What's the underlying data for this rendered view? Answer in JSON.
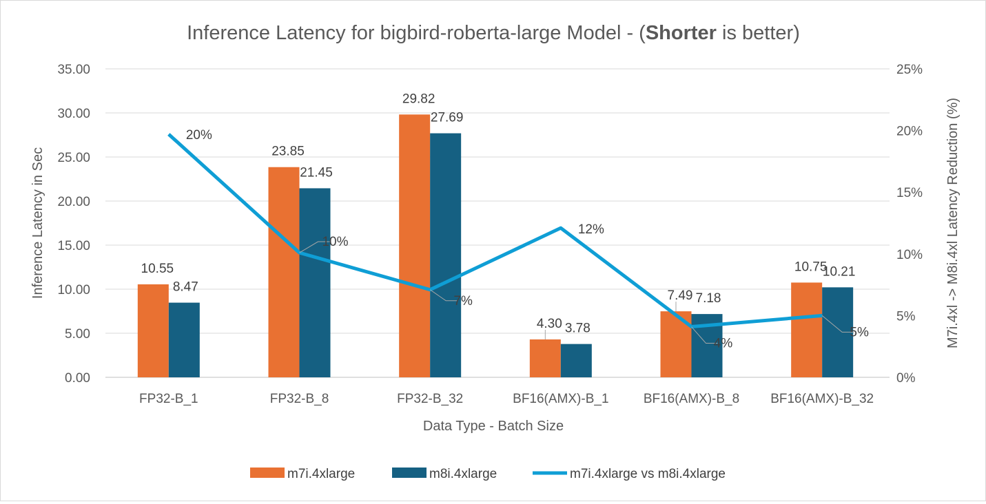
{
  "chart_data": {
    "type": "bar",
    "title_parts": [
      "Inference Latency for bigbird-roberta-large Model - (",
      "Shorter",
      " is better)"
    ],
    "xlabel": "Data Type - Batch Size",
    "ylabel": "Inference Latency in Sec",
    "y2label": "M7i.4xl -> M8i.4xl Latency Reduction (%)",
    "ylim": [
      0,
      35
    ],
    "y2lim": [
      0,
      25
    ],
    "yticks": [
      "0.00",
      "5.00",
      "10.00",
      "15.00",
      "20.00",
      "25.00",
      "30.00",
      "35.00"
    ],
    "y2ticks": [
      "0%",
      "5%",
      "10%",
      "15%",
      "20%",
      "25%"
    ],
    "grid": true,
    "legend_position": "bottom",
    "categories": [
      "FP32-B_1",
      "FP32-B_8",
      "FP32-B_32",
      "BF16(AMX)-B_1",
      "BF16(AMX)-B_8",
      "BF16(AMX)-B_32"
    ],
    "series": [
      {
        "name": "m7i.4xlarge",
        "type": "bar",
        "axis": "left",
        "color": "#E97132",
        "values": [
          10.55,
          23.85,
          29.82,
          4.3,
          7.49,
          10.75
        ],
        "labels": [
          "10.55",
          "23.85",
          "29.82",
          "4.30",
          "7.49",
          "10.75"
        ]
      },
      {
        "name": "m8i.4xlarge",
        "type": "bar",
        "axis": "left",
        "color": "#156082",
        "values": [
          8.47,
          21.45,
          27.69,
          3.78,
          7.18,
          10.21
        ],
        "labels": [
          "8.47",
          "21.45",
          "27.69",
          "3.78",
          "7.18",
          "10.21"
        ]
      },
      {
        "name": "m7i.4xlarge vs m8i.4xlarge",
        "type": "line",
        "axis": "right",
        "color": "#0F9ED5",
        "values": [
          19.7,
          10.1,
          7.1,
          12.1,
          4.1,
          5.0
        ],
        "labels": [
          "20%",
          "10%",
          "7%",
          "12%",
          "4%",
          "5%"
        ]
      }
    ]
  }
}
